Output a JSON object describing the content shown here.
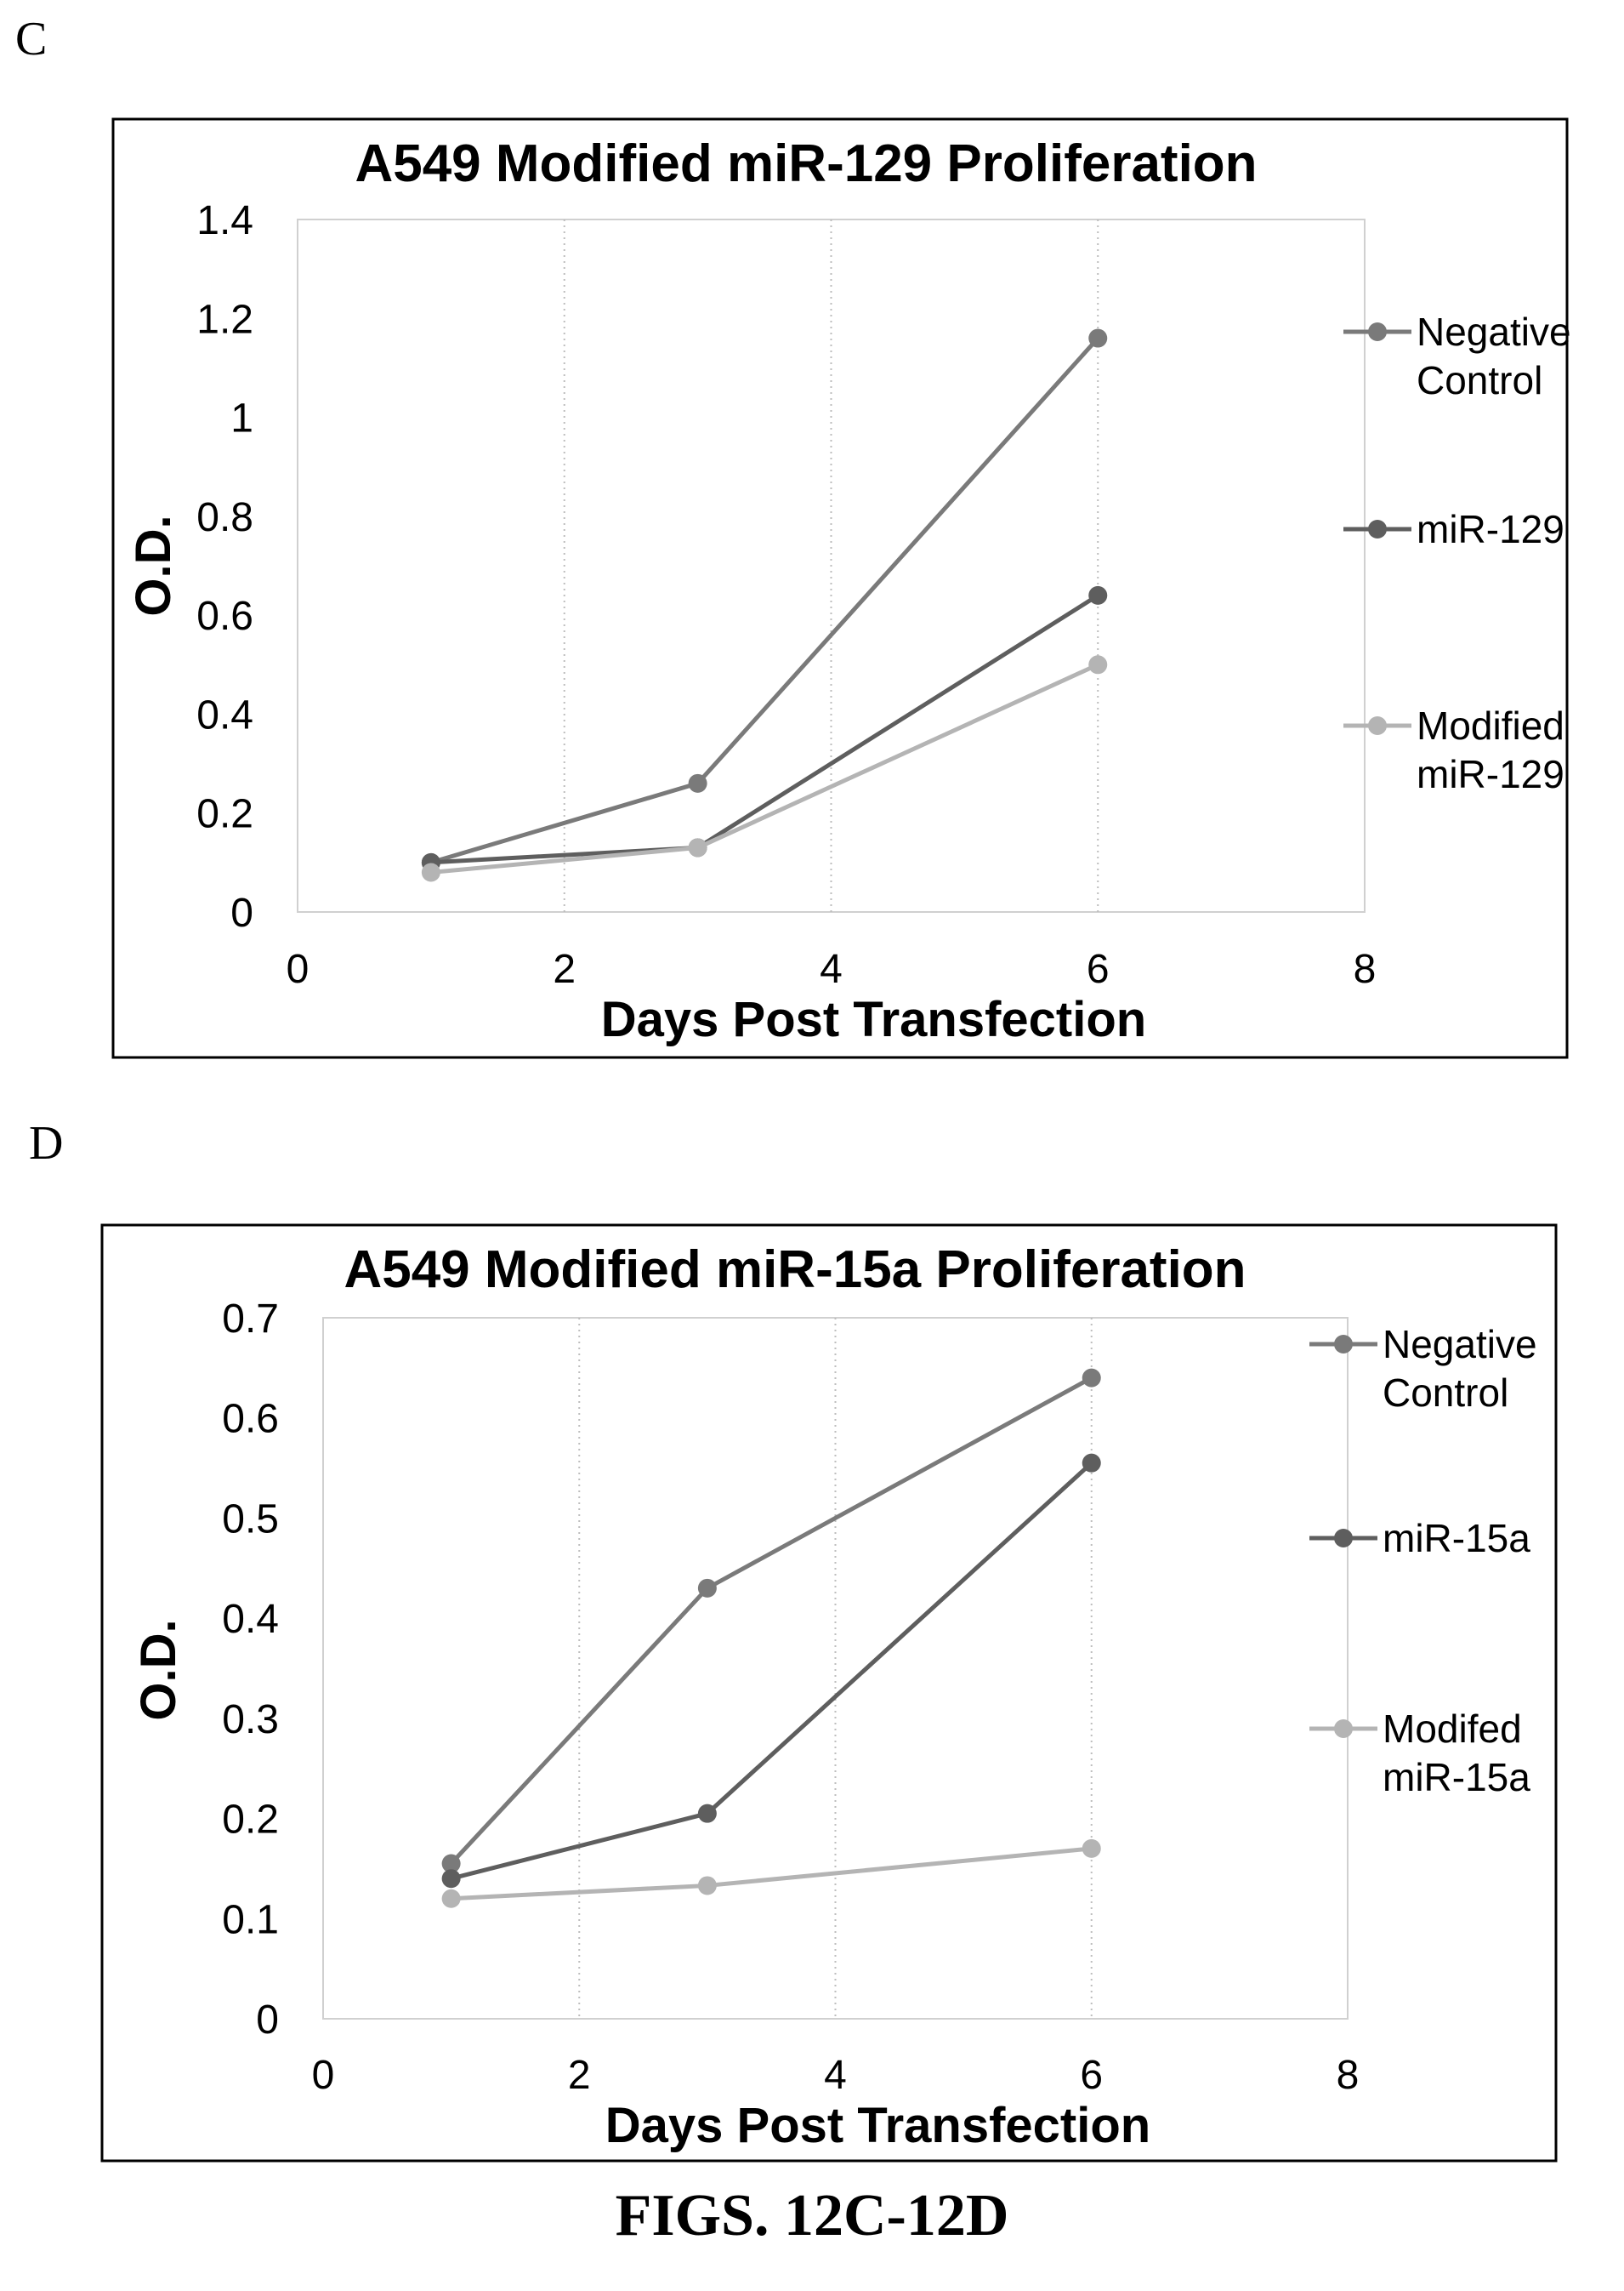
{
  "panels": {
    "c_label": "C",
    "d_label": "D"
  },
  "figure_caption": "FIGS. 12C-12D",
  "chart_data": [
    {
      "type": "line",
      "title": "A549 Modified miR-129 Proliferation",
      "xlabel": "Days Post Transfection",
      "ylabel": "O.D.",
      "xlim": [
        0,
        8
      ],
      "ylim": [
        0,
        1.4
      ],
      "x_ticks": [
        0,
        2,
        4,
        6,
        8
      ],
      "y_ticks": [
        0,
        0.2,
        0.4,
        0.6,
        0.8,
        1,
        1.2,
        1.4
      ],
      "x_tick_labels": [
        "0",
        "2",
        "4",
        "6",
        "8"
      ],
      "y_tick_labels": [
        "0",
        "0.2",
        "0.4",
        "0.6",
        "0.8",
        "1",
        "1.2",
        "1.4"
      ],
      "grid": "vertical dotted",
      "legend": "right",
      "series": [
        {
          "name": "Negative Control",
          "legend_lines": [
            "Negative",
            "Control"
          ],
          "color": "#7a7a7a",
          "x": [
            1,
            3,
            6
          ],
          "y": [
            0.1,
            0.26,
            1.16
          ]
        },
        {
          "name": "miR-129",
          "legend_lines": [
            "miR-129"
          ],
          "color": "#5e5e5e",
          "x": [
            1,
            3,
            6
          ],
          "y": [
            0.1,
            0.13,
            0.64
          ]
        },
        {
          "name": "Modified miR-129",
          "legend_lines": [
            "Modified",
            "miR-129"
          ],
          "color": "#b4b4b4",
          "x": [
            1,
            3,
            6
          ],
          "y": [
            0.08,
            0.13,
            0.5
          ]
        }
      ]
    },
    {
      "type": "line",
      "title": "A549 Modified miR-15a Proliferation",
      "xlabel": "Days Post Transfection",
      "ylabel": "O.D.",
      "xlim": [
        0,
        8
      ],
      "ylim": [
        0,
        0.7
      ],
      "x_ticks": [
        0,
        2,
        4,
        6,
        8
      ],
      "y_ticks": [
        0,
        0.1,
        0.2,
        0.3,
        0.4,
        0.5,
        0.6,
        0.7
      ],
      "x_tick_labels": [
        "0",
        "2",
        "4",
        "6",
        "8"
      ],
      "y_tick_labels": [
        "0",
        "0.1",
        "0.2",
        "0.3",
        "0.4",
        "0.5",
        "0.6",
        "0.7"
      ],
      "grid": "vertical dotted",
      "legend": "right",
      "series": [
        {
          "name": "Negative Control",
          "legend_lines": [
            "Negative",
            "Control"
          ],
          "color": "#7a7a7a",
          "x": [
            1,
            3,
            6
          ],
          "y": [
            0.155,
            0.43,
            0.64
          ]
        },
        {
          "name": "miR-15a",
          "legend_lines": [
            "miR-15a"
          ],
          "color": "#5e5e5e",
          "x": [
            1,
            3,
            6
          ],
          "y": [
            0.14,
            0.205,
            0.555
          ]
        },
        {
          "name": "Modifed miR-15a",
          "legend_lines": [
            "Modifed",
            "miR-15a"
          ],
          "color": "#b4b4b4",
          "x": [
            1,
            3,
            6
          ],
          "y": [
            0.12,
            0.133,
            0.17
          ]
        }
      ]
    }
  ]
}
